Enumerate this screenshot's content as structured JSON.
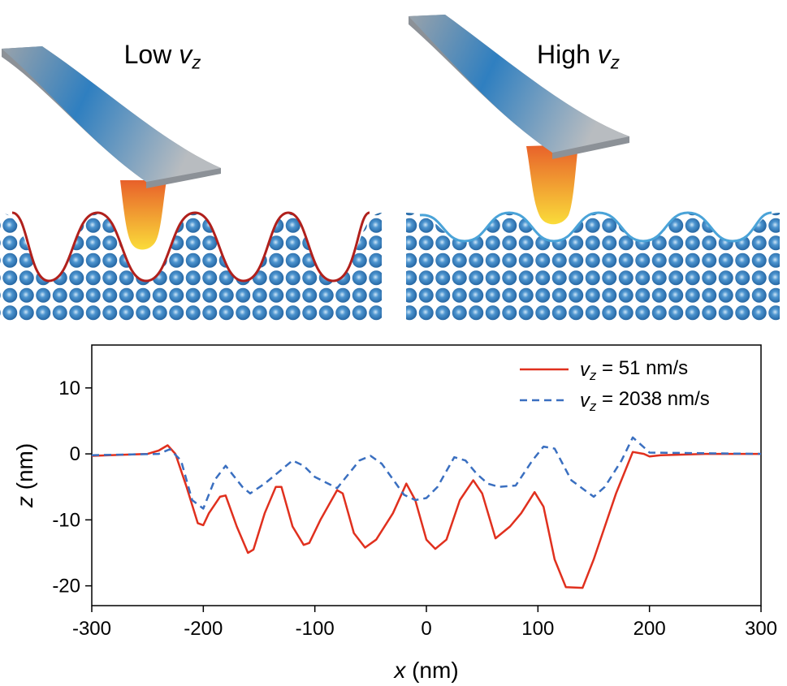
{
  "illustrations": [
    {
      "title": "Low vz"
    },
    {
      "title": "High vz"
    }
  ],
  "chart_data": {
    "type": "line",
    "xlabel": "x (nm)",
    "ylabel": "z (nm)",
    "xlim": [
      -300,
      300
    ],
    "xticks": [
      -300,
      -200,
      -100,
      0,
      100,
      200,
      300
    ],
    "ylim": [
      -23,
      16.5
    ],
    "yticks": [
      -20,
      -10,
      0,
      10
    ],
    "legend": "upper right",
    "series": [
      {
        "name": "vz = 51 nm/s",
        "color": "#e0301e",
        "style": "solid",
        "x": [
          -300,
          -250,
          -240,
          -232,
          -225,
          -215,
          -205,
          -200,
          -195,
          -185,
          -180,
          -170,
          -160,
          -155,
          -145,
          -135,
          -130,
          -120,
          -110,
          -105,
          -95,
          -80,
          -75,
          -65,
          -55,
          -45,
          -30,
          -18,
          -10,
          0,
          8,
          18,
          30,
          42,
          50,
          62,
          75,
          85,
          97,
          105,
          115,
          125,
          140,
          150,
          170,
          185,
          195,
          200,
          210,
          250,
          300
        ],
        "values": [
          -0.3,
          0,
          0.5,
          1.3,
          0,
          -5,
          -10.5,
          -10.8,
          -9,
          -6.5,
          -6.3,
          -11,
          -15,
          -14.5,
          -9,
          -5,
          -5,
          -11,
          -13.8,
          -13.5,
          -10,
          -5.5,
          -6,
          -12,
          -14.2,
          -13,
          -9,
          -4.5,
          -7,
          -13,
          -14.4,
          -13,
          -7,
          -4,
          -6,
          -12.8,
          -11,
          -9,
          -5.8,
          -8,
          -16,
          -20.2,
          -20.3,
          -16,
          -6,
          0.3,
          0,
          -0.4,
          -0.2,
          0,
          0
        ]
      },
      {
        "name": "vz = 2038 nm/s",
        "color": "#3a6fc0",
        "style": "dashed",
        "x": [
          -300,
          -240,
          -230,
          -220,
          -210,
          -200,
          -190,
          -180,
          -165,
          -158,
          -145,
          -120,
          -110,
          -100,
          -80,
          -60,
          -50,
          -40,
          -20,
          -10,
          0,
          10,
          25,
          35,
          45,
          55,
          65,
          80,
          95,
          105,
          115,
          130,
          150,
          160,
          175,
          185,
          195,
          200,
          250,
          300
        ],
        "values": [
          -0.2,
          0,
          0.7,
          -1,
          -7,
          -8.3,
          -4,
          -1.8,
          -5,
          -6,
          -4.5,
          -1,
          -1.8,
          -3.5,
          -5.2,
          -1,
          -0.3,
          -1.5,
          -6.2,
          -7,
          -6.7,
          -5,
          -0.5,
          -1,
          -3,
          -4.5,
          -5,
          -4.8,
          -1,
          1.1,
          0.8,
          -4,
          -6.5,
          -5,
          -1,
          2.5,
          1,
          0.2,
          0.1,
          0
        ]
      }
    ]
  }
}
